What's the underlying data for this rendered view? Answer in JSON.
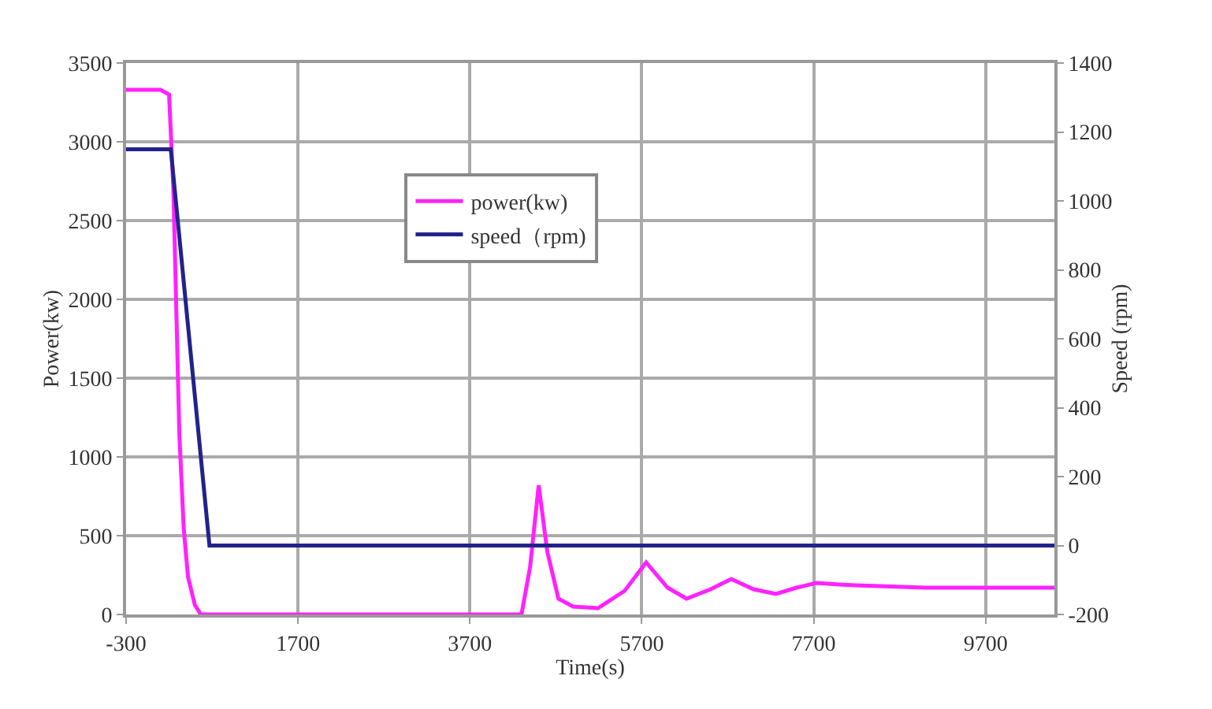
{
  "chart_data": {
    "type": "line",
    "xlabel": "Time(s)",
    "ylabel": "Power(kw)",
    "y2label": "Speed (rpm)",
    "xlim": [
      -300,
      10500
    ],
    "xticks": [
      -300,
      1700,
      3700,
      5700,
      7700,
      9700
    ],
    "ylim": [
      0,
      3500
    ],
    "yticks": [
      0,
      500,
      1000,
      1500,
      2000,
      2500,
      3000,
      3500
    ],
    "y2lim": [
      -200,
      1400
    ],
    "y2ticks": [
      -200,
      0,
      200,
      400,
      600,
      800,
      1000,
      1200,
      1400
    ],
    "grid": true,
    "legend": "top",
    "marker": "none",
    "line_style": "solid",
    "series": [
      {
        "name": "power(kw)",
        "color": "#ff22ff",
        "x": [
          -300,
          100,
          200,
          250,
          280,
          320,
          370,
          420,
          500,
          570,
          700,
          2000,
          4000,
          4300,
          4400,
          4500,
          4600,
          4730,
          4900,
          5190,
          5500,
          5750,
          6000,
          6220,
          6500,
          6740,
          7000,
          7260,
          7500,
          7730,
          8000,
          8190,
          9000,
          10500
        ],
        "values": [
          3330,
          3330,
          3300,
          2700,
          2030,
          1140,
          550,
          240,
          60,
          0,
          0,
          0,
          0,
          0,
          300,
          820,
          400,
          100,
          50,
          40,
          150,
          330,
          170,
          100,
          160,
          225,
          160,
          130,
          170,
          200,
          190,
          185,
          170,
          170
        ]
      },
      {
        "name": "speed（rpm)",
        "color": "#22228c",
        "axis": "y2",
        "x": [
          -300,
          220,
          670,
          10500
        ],
        "values": [
          1150,
          1150,
          0,
          0
        ]
      }
    ]
  }
}
